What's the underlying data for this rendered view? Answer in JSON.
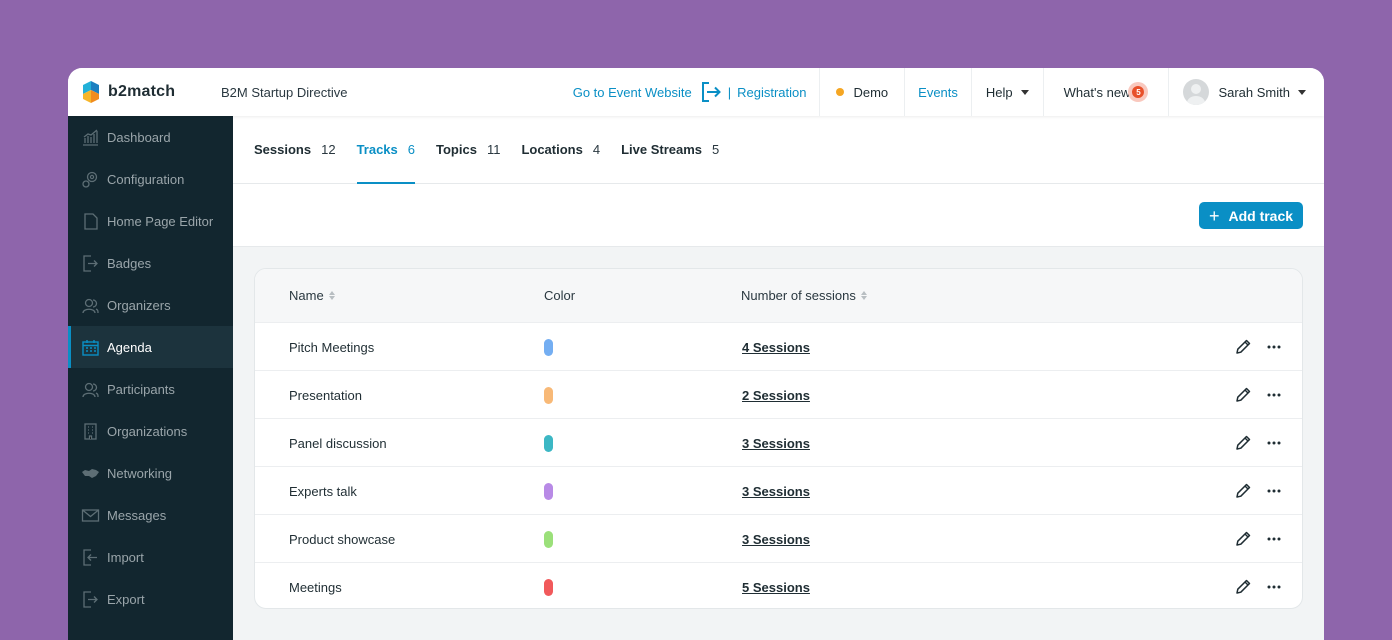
{
  "header": {
    "logo_text": "b2match",
    "event_name": "B2M Startup Directive",
    "go_to_event": "Go to Event Website",
    "separator": "|",
    "registration": "Registration",
    "demo": "Demo",
    "events": "Events",
    "help": "Help",
    "whats_new": "What's new",
    "whats_new_count": "5",
    "user_name": "Sarah Smith"
  },
  "sidebar": {
    "items": [
      {
        "label": "Dashboard",
        "icon": "chart-icon"
      },
      {
        "label": "Configuration",
        "icon": "gear-icon"
      },
      {
        "label": "Home Page Editor",
        "icon": "document-icon"
      },
      {
        "label": "Badges",
        "icon": "badge-icon"
      },
      {
        "label": "Organizers",
        "icon": "people-icon"
      },
      {
        "label": "Agenda",
        "icon": "calendar-icon",
        "active": true
      },
      {
        "label": "Participants",
        "icon": "people-icon"
      },
      {
        "label": "Organizations",
        "icon": "building-icon"
      },
      {
        "label": "Networking",
        "icon": "handshake-icon"
      },
      {
        "label": "Messages",
        "icon": "envelope-icon"
      },
      {
        "label": "Import",
        "icon": "import-icon"
      },
      {
        "label": "Export",
        "icon": "export-icon"
      }
    ]
  },
  "tabs": [
    {
      "label": "Sessions",
      "count": "12"
    },
    {
      "label": "Tracks",
      "count": "6",
      "active": true
    },
    {
      "label": "Topics",
      "count": "11"
    },
    {
      "label": "Locations",
      "count": "4"
    },
    {
      "label": "Live Streams",
      "count": "5"
    }
  ],
  "toolbar": {
    "add_track_label": "Add track",
    "add_track_icon": "+"
  },
  "table": {
    "columns": {
      "name": "Name",
      "color": "Color",
      "sessions": "Number of sessions"
    },
    "rows": [
      {
        "name": "Pitch Meetings",
        "color": "#74aef2",
        "sessions": "4 Sessions"
      },
      {
        "name": "Presentation",
        "color": "#f8b977",
        "sessions": "2 Sessions"
      },
      {
        "name": "Panel discussion",
        "color": "#3cb7c4",
        "sessions": "3 Sessions"
      },
      {
        "name": "Experts talk",
        "color": "#b88ae6",
        "sessions": "3 Sessions"
      },
      {
        "name": "Product showcase",
        "color": "#9be07a",
        "sessions": "3 Sessions"
      },
      {
        "name": "Meetings",
        "color": "#f1595b",
        "sessions": "5 Sessions"
      }
    ]
  },
  "colors": {
    "accent": "#0a8fc5",
    "sidebar": "#12262f",
    "background": "#8e65ab"
  }
}
